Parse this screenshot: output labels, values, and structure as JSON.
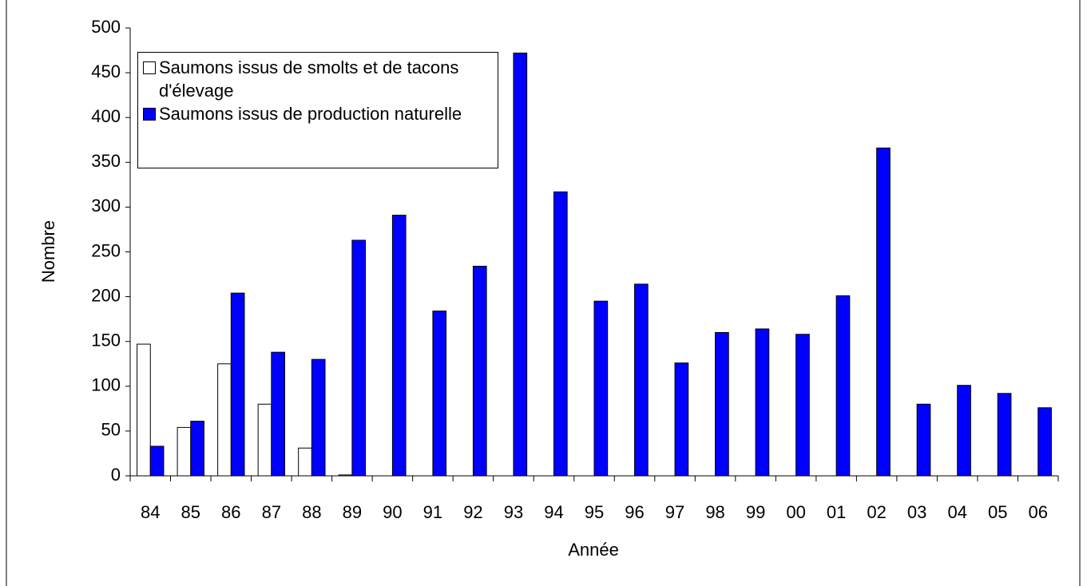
{
  "chart_data": {
    "type": "bar",
    "xlabel": "Année",
    "ylabel": "Nombre",
    "categories": [
      "84",
      "85",
      "86",
      "87",
      "88",
      "89",
      "90",
      "91",
      "92",
      "93",
      "94",
      "95",
      "96",
      "97",
      "98",
      "99",
      "00",
      "01",
      "02",
      "03",
      "04",
      "05",
      "06"
    ],
    "series": [
      {
        "name": "Saumons issus de smolts et de tacons d'élevage",
        "color": "#ffffff",
        "values": [
          147,
          54,
          125,
          80,
          31,
          1,
          0,
          0,
          0,
          0,
          0,
          0,
          0,
          0,
          0,
          0,
          0,
          0,
          0,
          0,
          0,
          0,
          0
        ]
      },
      {
        "name": "Saumons issus de production naturelle",
        "color": "#0000ff",
        "values": [
          33,
          61,
          204,
          138,
          130,
          263,
          291,
          184,
          234,
          472,
          317,
          195,
          214,
          126,
          160,
          164,
          158,
          201,
          366,
          80,
          101,
          92,
          76
        ]
      }
    ],
    "ylim": [
      0,
      500
    ],
    "yticks": [
      0,
      50,
      100,
      150,
      200,
      250,
      300,
      350,
      400,
      450,
      500
    ],
    "legend": "upper left"
  }
}
